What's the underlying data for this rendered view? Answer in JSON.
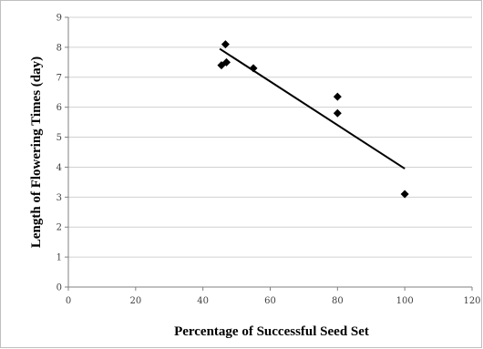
{
  "chart_data": {
    "type": "scatter",
    "xlabel": "Percentage of Successful Seed Set",
    "ylabel": "Length of Flowering Times (day)",
    "xlim": [
      0,
      120
    ],
    "ylim": [
      0,
      9
    ],
    "x_ticks": [
      "0",
      "20",
      "40",
      "60",
      "80",
      "100",
      "120"
    ],
    "y_ticks": [
      "0",
      "1",
      "2",
      "3",
      "4",
      "5",
      "6",
      "7",
      "8",
      "9"
    ],
    "grid": "horizontal",
    "legend": "none",
    "series": [
      {
        "points": [
          {
            "x": 46.7,
            "y": 8.1
          },
          {
            "x": 45.5,
            "y": 7.4
          },
          {
            "x": 47.0,
            "y": 7.5
          },
          {
            "x": 55.0,
            "y": 7.3
          },
          {
            "x": 80.0,
            "y": 6.35
          },
          {
            "x": 80.0,
            "y": 5.8
          },
          {
            "x": 100.0,
            "y": 3.1
          }
        ],
        "marker": "diamond",
        "color": "#000000"
      }
    ],
    "trendline": {
      "x": [
        45,
        100
      ],
      "y": [
        7.95,
        3.95
      ],
      "color": "#000000"
    }
  }
}
